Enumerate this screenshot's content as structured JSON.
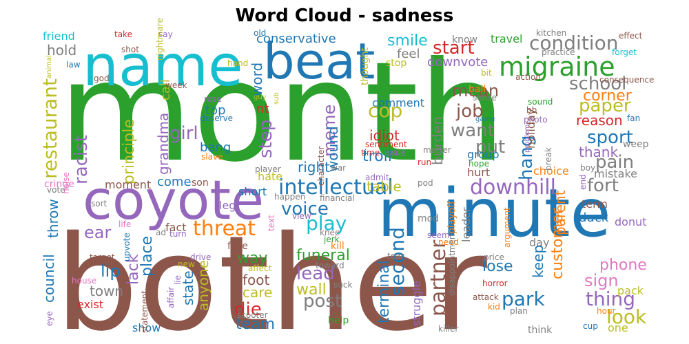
{
  "title": "Word Cloud - sadness",
  "colors": {
    "green": "#2ca02c",
    "brown": "#8c564b",
    "blue": "#1f77b4",
    "cyan": "#17becf",
    "purple": "#9467bd",
    "olive": "#bcbd22",
    "orange": "#ff7f0e",
    "red": "#d62728",
    "pink": "#e377c2",
    "gray": "#7f7f7f"
  },
  "chart_data": {
    "type": "wordcloud",
    "title": "Word Cloud - sadness",
    "words": [
      {
        "text": "month",
        "color": "green"
      },
      {
        "text": "bother",
        "color": "brown"
      },
      {
        "text": "minute",
        "color": "blue"
      },
      {
        "text": "coyote",
        "color": "purple"
      },
      {
        "text": "name",
        "color": "cyan"
      },
      {
        "text": "beat",
        "color": "blue"
      },
      {
        "text": "migraine",
        "color": "green"
      },
      {
        "text": "intellectual",
        "color": "blue"
      },
      {
        "text": "condition",
        "color": "gray"
      },
      {
        "text": "downhill",
        "color": "purple"
      },
      {
        "text": "restaurant",
        "color": "olive"
      },
      {
        "text": "partner",
        "color": "brown"
      },
      {
        "text": "threat",
        "color": "orange"
      },
      {
        "text": "school",
        "color": "gray"
      },
      {
        "text": "voice",
        "color": "blue"
      },
      {
        "text": "racist",
        "color": "purple"
      },
      {
        "text": "start",
        "color": "red"
      },
      {
        "text": "paper",
        "color": "olive"
      },
      {
        "text": "second",
        "color": "blue"
      },
      {
        "text": "play",
        "color": "cyan"
      },
      {
        "text": "job",
        "color": "brown"
      },
      {
        "text": "park",
        "color": "blue"
      },
      {
        "text": "want",
        "color": "gray"
      },
      {
        "text": "post",
        "color": "gray"
      },
      {
        "text": "fort",
        "color": "gray"
      },
      {
        "text": "sport",
        "color": "blue"
      },
      {
        "text": "pain",
        "color": "gray"
      },
      {
        "text": "thing",
        "color": "purple"
      },
      {
        "text": "look",
        "color": "olive"
      },
      {
        "text": "lead",
        "color": "purple"
      },
      {
        "text": "cop",
        "color": "olive"
      },
      {
        "text": "mean",
        "color": "brown"
      },
      {
        "text": "girl",
        "color": "purple"
      },
      {
        "text": "step",
        "color": "purple"
      },
      {
        "text": "meme",
        "color": "purple"
      },
      {
        "text": "put",
        "color": "gray"
      },
      {
        "text": "hang",
        "color": "blue"
      },
      {
        "text": "conservative",
        "color": "blue"
      },
      {
        "text": "smile",
        "color": "cyan"
      },
      {
        "text": "ear",
        "color": "purple"
      },
      {
        "text": "die",
        "color": "red"
      },
      {
        "text": "team",
        "color": "blue"
      },
      {
        "text": "sign",
        "color": "pink"
      },
      {
        "text": "customer",
        "color": "orange"
      },
      {
        "text": "principle",
        "color": "olive"
      },
      {
        "text": "funeral",
        "color": "green"
      },
      {
        "text": "terminal",
        "color": "blue"
      },
      {
        "text": "council",
        "color": "blue"
      },
      {
        "text": "troll",
        "color": "blue"
      },
      {
        "text": "wound",
        "color": "blue"
      },
      {
        "text": "corner",
        "color": "orange"
      },
      {
        "text": "place",
        "color": "blue"
      },
      {
        "text": "lack",
        "color": "purple"
      },
      {
        "text": "grandma",
        "color": "purple"
      },
      {
        "text": "town",
        "color": "gray"
      },
      {
        "text": "lip",
        "color": "blue"
      },
      {
        "text": "wall",
        "color": "olive"
      },
      {
        "text": "foot",
        "color": "brown"
      },
      {
        "text": "care",
        "color": "olive"
      },
      {
        "text": "state",
        "color": "blue"
      },
      {
        "text": "anyone",
        "color": "olive"
      },
      {
        "text": "keep",
        "color": "blue"
      },
      {
        "text": "parent",
        "color": "orange"
      },
      {
        "text": "phone",
        "color": "pink"
      },
      {
        "text": "lose",
        "color": "blue"
      },
      {
        "text": "right",
        "color": "blue"
      },
      {
        "text": "table",
        "color": "olive"
      },
      {
        "text": "idiot",
        "color": "red"
      },
      {
        "text": "reason",
        "color": "red"
      },
      {
        "text": "thank",
        "color": "purple"
      },
      {
        "text": "throw",
        "color": "blue"
      },
      {
        "text": "word",
        "color": "blue"
      },
      {
        "text": "nt",
        "color": "red"
      },
      {
        "text": "top",
        "color": "blue"
      },
      {
        "text": "bang",
        "color": "blue"
      },
      {
        "text": "hold",
        "color": "gray"
      },
      {
        "text": "call",
        "color": "olive"
      },
      {
        "text": "burden",
        "color": "gray"
      },
      {
        "text": "holiday",
        "color": "brown"
      },
      {
        "text": "downvote",
        "color": "purple"
      },
      {
        "text": "comment",
        "color": "blue"
      },
      {
        "text": "feel",
        "color": "gray"
      },
      {
        "text": "way",
        "color": "green"
      },
      {
        "text": "come",
        "color": "blue"
      },
      {
        "text": "cringe",
        "color": "pink"
      },
      {
        "text": "moment",
        "color": "brown"
      },
      {
        "text": "hate",
        "color": "olive"
      },
      {
        "text": "short",
        "color": "blue"
      },
      {
        "text": "leg",
        "color": "purple"
      },
      {
        "text": "fact",
        "color": "brown"
      },
      {
        "text": "face",
        "color": "brown"
      },
      {
        "text": "kill",
        "color": "orange"
      },
      {
        "text": "exist",
        "color": "red"
      },
      {
        "text": "show",
        "color": "blue"
      },
      {
        "text": "help",
        "color": "green"
      },
      {
        "text": "struggle",
        "color": "purple"
      },
      {
        "text": "mistake",
        "color": "gray"
      },
      {
        "text": "choice",
        "color": "orange"
      },
      {
        "text": "group",
        "color": "blue"
      },
      {
        "text": "hurt",
        "color": "brown"
      },
      {
        "text": "duck",
        "color": "blue"
      },
      {
        "text": "donut",
        "color": "purple"
      },
      {
        "text": "term",
        "color": "brown"
      },
      {
        "text": "day",
        "color": "gray"
      },
      {
        "text": "leader",
        "color": "gray"
      },
      {
        "text": "playoff",
        "color": "orange"
      },
      {
        "text": "mod",
        "color": "gray"
      },
      {
        "text": "pack",
        "color": "olive"
      },
      {
        "text": "hour",
        "color": "orange"
      },
      {
        "text": "one",
        "color": "olive"
      },
      {
        "text": "think",
        "color": "gray"
      },
      {
        "text": "weep",
        "color": "gray"
      },
      {
        "text": "fan",
        "color": "blue"
      },
      {
        "text": "ball",
        "color": "orange"
      },
      {
        "text": "travel",
        "color": "green"
      },
      {
        "text": "stop",
        "color": "olive"
      },
      {
        "text": "thought",
        "color": "olive"
      },
      {
        "text": "know",
        "color": "gray"
      },
      {
        "text": "friend",
        "color": "cyan"
      },
      {
        "text": "take",
        "color": "red"
      },
      {
        "text": "say",
        "color": "purple"
      },
      {
        "text": "old",
        "color": "blue"
      },
      {
        "text": "kitchen",
        "color": "gray"
      },
      {
        "text": "effect",
        "color": "brown"
      },
      {
        "text": "forget",
        "color": "cyan"
      },
      {
        "text": "practice",
        "color": "gray"
      },
      {
        "text": "law",
        "color": "blue"
      },
      {
        "text": "shot",
        "color": "brown"
      },
      {
        "text": "nightmare",
        "color": "olive"
      },
      {
        "text": "animal",
        "color": "olive"
      },
      {
        "text": "god",
        "color": "brown"
      },
      {
        "text": "hand",
        "color": "olive"
      },
      {
        "text": "week",
        "color": "brown"
      },
      {
        "text": "bit",
        "color": "olive"
      },
      {
        "text": "action",
        "color": "brown"
      },
      {
        "text": "consequence",
        "color": "brown"
      },
      {
        "text": "sense",
        "color": "gray"
      },
      {
        "text": "sound",
        "color": "green"
      },
      {
        "text": "bb",
        "color": "brown"
      },
      {
        "text": "photo",
        "color": "purple"
      },
      {
        "text": "game",
        "color": "blue"
      },
      {
        "text": "rose",
        "color": "purple"
      },
      {
        "text": "guy",
        "color": "olive"
      },
      {
        "text": "sub",
        "color": "olive"
      },
      {
        "text": "deserve",
        "color": "blue"
      },
      {
        "text": "slave",
        "color": "orange"
      },
      {
        "text": "character",
        "color": "brown"
      },
      {
        "text": "war",
        "color": "gray"
      },
      {
        "text": "matter",
        "color": "gray"
      },
      {
        "text": "sentiment",
        "color": "red"
      },
      {
        "text": "time",
        "color": "red"
      },
      {
        "text": "issue",
        "color": "purple"
      },
      {
        "text": "admit",
        "color": "purple"
      },
      {
        "text": "run",
        "color": "red"
      },
      {
        "text": "hope",
        "color": "green"
      },
      {
        "text": "problem",
        "color": "purple"
      },
      {
        "text": "break",
        "color": "gray"
      },
      {
        "text": "boy",
        "color": "gray"
      },
      {
        "text": "end",
        "color": "purple"
      },
      {
        "text": "player",
        "color": "gray"
      },
      {
        "text": "noise",
        "color": "pink"
      },
      {
        "text": "vote",
        "color": "gray"
      },
      {
        "text": "son",
        "color": "brown"
      },
      {
        "text": "happen",
        "color": "gray"
      },
      {
        "text": "financial",
        "color": "gray"
      },
      {
        "text": "pod",
        "color": "gray"
      },
      {
        "text": "sort",
        "color": "gray"
      },
      {
        "text": "life",
        "color": "pink"
      },
      {
        "text": "ad",
        "color": "gray"
      },
      {
        "text": "turn",
        "color": "purple"
      },
      {
        "text": "text",
        "color": "pink"
      },
      {
        "text": "view",
        "color": "purple"
      },
      {
        "text": "knee",
        "color": "gray"
      },
      {
        "text": "jerk",
        "color": "green"
      },
      {
        "text": "seem",
        "color": "purple"
      },
      {
        "text": "need",
        "color": "orange"
      },
      {
        "text": "argument",
        "color": "orange"
      },
      {
        "text": "upvote",
        "color": "blue"
      },
      {
        "text": "target",
        "color": "brown"
      },
      {
        "text": "house",
        "color": "pink"
      },
      {
        "text": "drive",
        "color": "purple"
      },
      {
        "text": "new",
        "color": "olive"
      },
      {
        "text": "affect",
        "color": "olive"
      },
      {
        "text": "lie",
        "color": "purple"
      },
      {
        "text": "affair",
        "color": "purple"
      },
      {
        "text": "toward",
        "color": "gray"
      },
      {
        "text": "tear",
        "color": "gray"
      },
      {
        "text": "disappointment",
        "color": "gray"
      },
      {
        "text": "price",
        "color": "gray"
      },
      {
        "text": "horror",
        "color": "red"
      },
      {
        "text": "attack",
        "color": "brown"
      },
      {
        "text": "kid",
        "color": "orange"
      },
      {
        "text": "plan",
        "color": "gray"
      },
      {
        "text": "suck",
        "color": "gray"
      },
      {
        "text": "scooter",
        "color": "gray"
      },
      {
        "text": "statement",
        "color": "brown"
      },
      {
        "text": "eye",
        "color": "purple"
      },
      {
        "text": "killer",
        "color": "gray"
      },
      {
        "text": "cup",
        "color": "blue"
      }
    ]
  }
}
